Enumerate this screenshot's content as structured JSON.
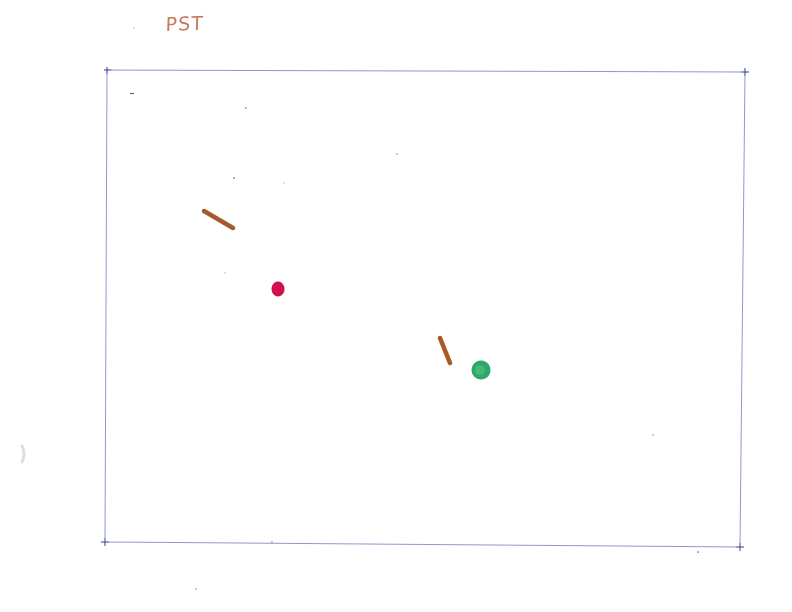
{
  "sheet": {
    "label": "PST",
    "frame_color": "#8f97d1",
    "corner_marker_color": "#2f3d8f"
  },
  "marks": [
    {
      "kind": "stroke",
      "name": "upper-brown-stroke",
      "color": "#a45a2b"
    },
    {
      "kind": "dot",
      "name": "red-dot",
      "color": "#d0114b"
    },
    {
      "kind": "stroke",
      "name": "lower-brown-stroke",
      "color": "#a85a22"
    },
    {
      "kind": "dot",
      "name": "green-dot",
      "color": "#2ea86a"
    }
  ]
}
